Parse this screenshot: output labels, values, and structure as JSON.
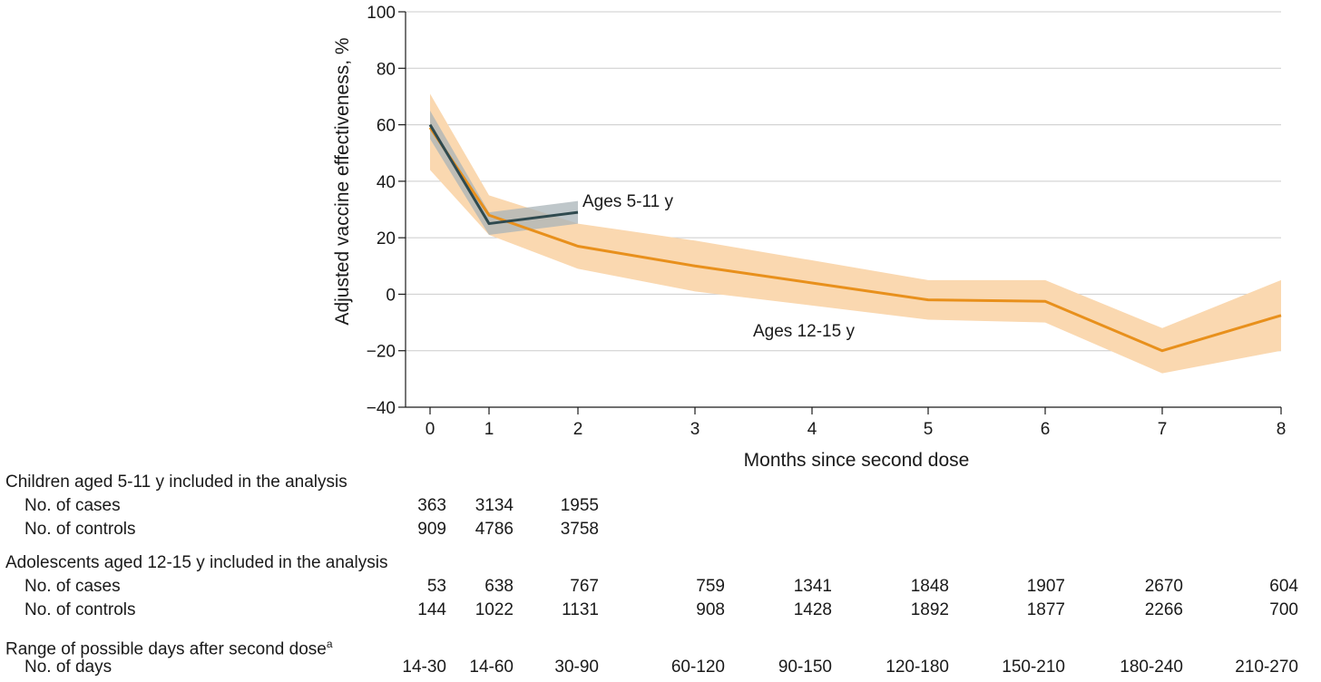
{
  "chart_data": {
    "type": "line",
    "x": [
      0,
      1,
      2,
      3,
      4,
      5,
      6,
      7,
      8
    ],
    "xlabel": "Months since second dose",
    "ylabel": "Adjusted vaccine effectiveness, %",
    "xlim": [
      0,
      8
    ],
    "ylim": [
      -40,
      100
    ],
    "yticks": [
      -40,
      -20,
      0,
      20,
      40,
      60,
      80,
      100
    ],
    "xticks": [
      0,
      1,
      2,
      3,
      4,
      5,
      6,
      7,
      8
    ],
    "grid": "horizontal",
    "colors": {
      "ages_5_11": "#2f4a4f",
      "ages_5_11_ci": "#aab4b8",
      "ages_12_15": "#e8901c",
      "ages_12_15_ci": "#fad8b0",
      "grid": "#cccccc"
    },
    "series": [
      {
        "name": "Ages 5-11 y",
        "x": [
          0,
          1,
          2
        ],
        "values": [
          60,
          25,
          29
        ],
        "ci_low": [
          55,
          21,
          25
        ],
        "ci_high": [
          65,
          29,
          33
        ]
      },
      {
        "name": "Ages 12-15 y",
        "x": [
          0,
          1,
          2,
          3,
          4,
          5,
          6,
          7,
          8
        ],
        "values": [
          59,
          28,
          17,
          10,
          4,
          -2,
          -2.5,
          -20,
          -7.5
        ],
        "ci_low": [
          44,
          21,
          9,
          1,
          -4,
          -9,
          -10,
          -28,
          -20
        ],
        "ci_high": [
          71,
          35,
          25,
          19,
          12,
          5,
          5,
          -12,
          5
        ]
      }
    ]
  },
  "table": {
    "children_header": "Children aged 5-11 y included in the analysis",
    "children_cases_label": "No. of cases",
    "children_cases": [
      "363",
      "3134",
      "1955"
    ],
    "children_controls_label": "No. of controls",
    "children_controls": [
      "909",
      "4786",
      "3758"
    ],
    "adolescents_header": "Adolescents aged 12-15 y included in the analysis",
    "adolescents_cases_label": "No. of cases",
    "adolescents_cases": [
      "53",
      "638",
      "767",
      "759",
      "1341",
      "1848",
      "1907",
      "2670",
      "604"
    ],
    "adolescents_controls_label": "No. of controls",
    "adolescents_controls": [
      "144",
      "1022",
      "1131",
      "908",
      "1428",
      "1892",
      "1877",
      "2266",
      "700"
    ],
    "days_header": "Range of possible days after second dose",
    "days_header_sup": "a",
    "days_label": "No. of days",
    "days": [
      "14-30",
      "14-60",
      "30-90",
      "60-120",
      "90-150",
      "120-180",
      "150-210",
      "180-240",
      "210-270"
    ]
  }
}
